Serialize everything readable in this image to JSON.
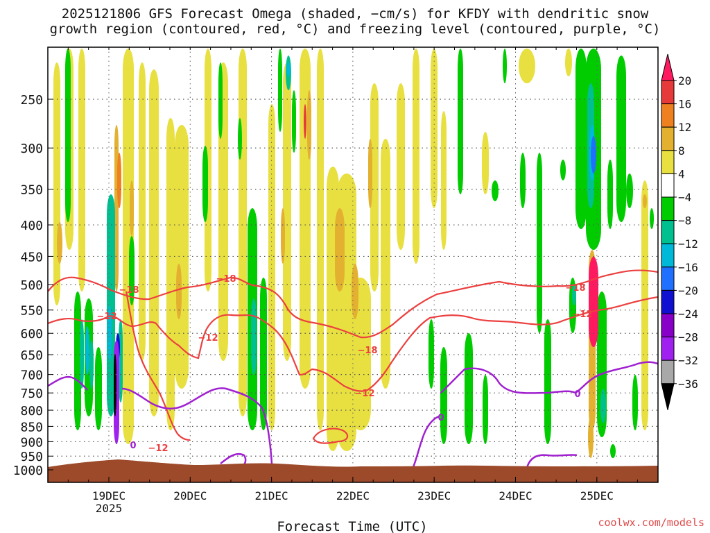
{
  "title_line1": "2025121806 GFS Forecast Omega (shaded, −cm/s) for KFDY with dendritic snow",
  "title_line2": "growth region (contoured, red, °C) and freezing level (contoured, purple, °C)",
  "watermark": "coolwx.com/models",
  "chart_data": {
    "type": "heatmap",
    "title": "2025121806 GFS Forecast Omega (shaded, −cm/s) for KFDY with dendritic snow growth region (contoured, red, °C) and freezing level (contoured, purple, °C)",
    "xlabel": "Forecast Time (UTC)",
    "ylabel": "",
    "x_ticks": [
      "19DEC",
      "20DEC",
      "21DEC",
      "22DEC",
      "23DEC",
      "24DEC",
      "25DEC"
    ],
    "x_sublabel": "2025",
    "y_ticks": [
      250,
      300,
      350,
      400,
      450,
      500,
      550,
      600,
      650,
      700,
      750,
      800,
      850,
      900,
      950,
      1000
    ],
    "ylim": [
      1000,
      200
    ],
    "colorbar": {
      "labels": [
        "20",
        "16",
        "12",
        "8",
        "4",
        "−4",
        "−8",
        "−12",
        "−16",
        "−20",
        "−24",
        "−28",
        "−32",
        "−36"
      ],
      "colors": [
        "#ff1a60",
        "#e63a3a",
        "#ee8020",
        "#e4b030",
        "#e8e040",
        "#ffffff",
        "#00cc00",
        "#00c090",
        "#00b8d8",
        "#2070ff",
        "#1010d0",
        "#8800c8",
        "#a020f0",
        "#a8a8a8",
        "#000000"
      ]
    },
    "contour_labels_red": [
      "−18",
      "−12",
      "−12",
      "−18",
      "−18",
      "−12",
      "−12",
      "−18",
      "−12"
    ],
    "contour_labels_purple": [
      "0",
      "0",
      "0"
    ],
    "colors": {
      "dgz_contour": "#ec4040",
      "freezing_contour": "#a020d0",
      "terrain": "#9c4a2a",
      "grid": "#888888"
    }
  }
}
